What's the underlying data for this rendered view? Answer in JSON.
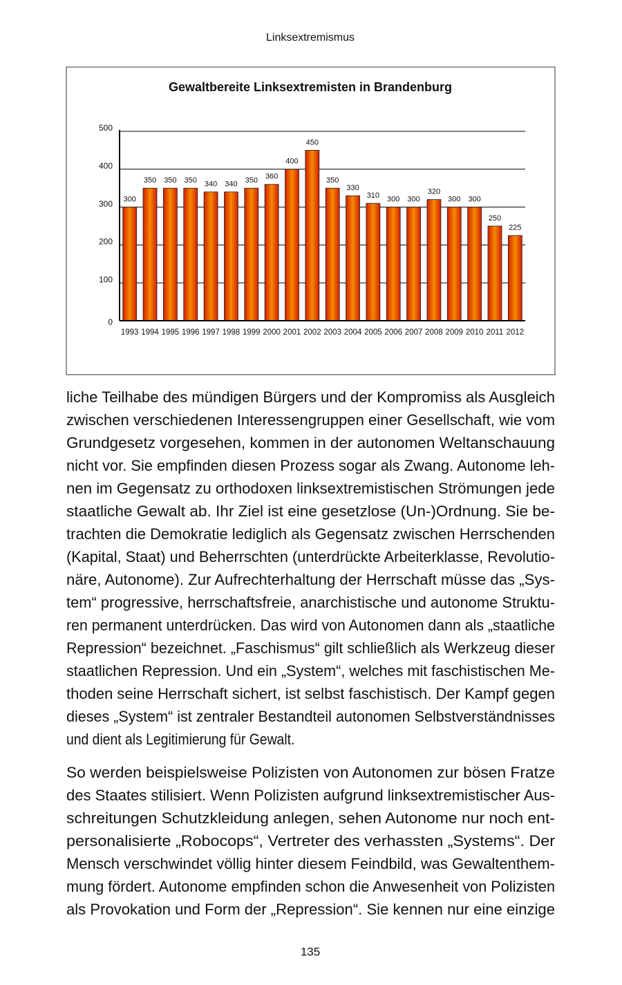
{
  "header": "Linksextremismus",
  "chart_data": {
    "type": "bar",
    "title": "Gewaltbereite Linksextremisten in Brandenburg",
    "categories": [
      "1993",
      "1994",
      "1995",
      "1996",
      "1997",
      "1998",
      "1999",
      "2000",
      "2001",
      "2002",
      "2003",
      "2004",
      "2005",
      "2006",
      "2007",
      "2008",
      "2009",
      "2010",
      "2011",
      "2012"
    ],
    "values": [
      300,
      350,
      350,
      350,
      340,
      340,
      350,
      360,
      400,
      450,
      350,
      330,
      310,
      300,
      300,
      320,
      300,
      300,
      250,
      225
    ],
    "color": "#f58a00",
    "ylim": [
      0,
      500
    ],
    "yticks": [
      0,
      100,
      200,
      300,
      400,
      500
    ],
    "grid": true
  },
  "paragraphs": [
    [
      "liche Teilhabe des mündigen Bürgers und der Kompromiss als Ausgleich",
      "zwischen verschiedenen Interessengruppen einer Gesellschaft, wie vom",
      "Grundgesetz vorgesehen, kommen in der autonomen Weltanschauung",
      "nicht vor. Sie empfinden diesen Prozess sogar als Zwang. Autonome leh-",
      "nen im Gegensatz zu orthodoxen linksextremistischen Strömungen jede",
      "staatliche Gewalt ab. Ihr Ziel ist eine gesetzlose (Un-)Ordnung. Sie be-",
      "trachten die Demokratie lediglich als Gegensatz zwischen Herrschenden",
      "(Kapital, Staat) und Beherrschten (unterdrückte Arbeiterklasse, Revolutio-",
      "näre, Autonome). Zur Aufrechterhaltung der Herrschaft müsse das „Sys-",
      "tem“ progressive, herrschaftsfreie, anarchistische und autonome Struktu-",
      "ren permanent unterdrücken. Das wird von Autonomen dann als „staatliche",
      "Repression“ bezeichnet. „Faschismus“ gilt schließlich als Werkzeug dieser",
      "staatlichen Repression. Und ein „System“, welches mit faschistischen Me-",
      "thoden seine Herrschaft sichert, ist selbst faschistisch. Der Kampf gegen",
      "dieses „System“ ist zentraler Bestandteil autonomen Selbstverständnisses",
      "und dient als Legitimierung für Gewalt."
    ],
    [
      "So werden beispielsweise Polizisten von Autonomen zur bösen Fratze",
      "des Staates stilisiert. Wenn Polizisten aufgrund linksextremistischer Aus-",
      "schreitungen Schutzkleidung anlegen, sehen Autonome nur noch ent-",
      "personalisierte „Robocops“, Vertreter des verhassten „Systems“. Der",
      "Mensch verschwindet völlig hinter diesem Feindbild, was Gewaltenthem-",
      "mung fördert. Autonome empfinden schon die Anwesenheit von Polizisten",
      "als Provokation und Form der „Repression“. Sie kennen nur eine einzige"
    ]
  ],
  "page_number": "135"
}
